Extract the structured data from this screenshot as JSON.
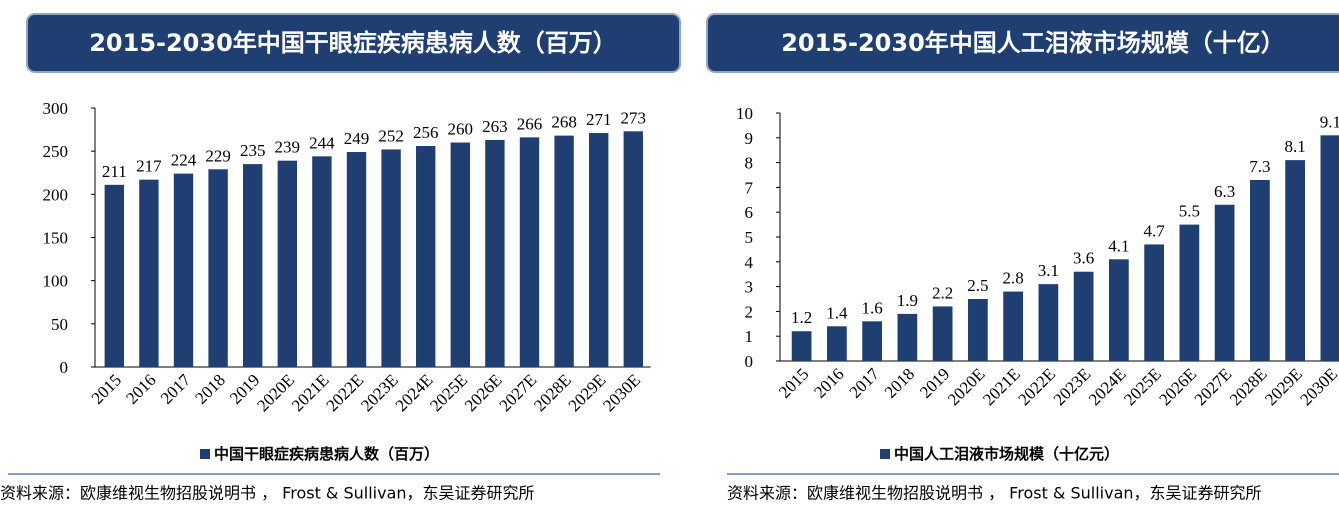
{
  "chart_data": [
    {
      "type": "bar",
      "title": "2015-2030年中国干眼症疾病患病人数（百万）",
      "categories": [
        "2015",
        "2016",
        "2017",
        "2018",
        "2019",
        "2020E",
        "2021E",
        "2022E",
        "2023E",
        "2024E",
        "2025E",
        "2026E",
        "2027E",
        "2028E",
        "2029E",
        "2030E"
      ],
      "series": [
        {
          "name": "中国干眼症疾病患病人数（百万）",
          "color": "#1f3f73",
          "values": [
            211,
            217,
            224,
            229,
            235,
            239,
            244,
            249,
            252,
            256,
            260,
            263,
            266,
            268,
            271,
            273
          ]
        }
      ],
      "ylim": [
        0,
        300
      ],
      "yticks": [
        0,
        50,
        100,
        150,
        200,
        250,
        300
      ],
      "grid": false,
      "source": "资料来源：欧康维视生物招股说明书 ， Frost & Sullivan，东吴证券研究所"
    },
    {
      "type": "bar",
      "title": "2015-2030年中国人工泪液市场规模（十亿）",
      "categories": [
        "2015",
        "2016",
        "2017",
        "2018",
        "2019",
        "2020E",
        "2021E",
        "2022E",
        "2023E",
        "2024E",
        "2025E",
        "2026E",
        "2027E",
        "2028E",
        "2029E",
        "2030E"
      ],
      "series": [
        {
          "name": "中国人工泪液市场规模（十亿元）",
          "color": "#1f3f73",
          "values": [
            1.2,
            1.4,
            1.6,
            1.9,
            2.2,
            2.5,
            2.8,
            3.1,
            3.6,
            4.1,
            4.7,
            5.5,
            6.3,
            7.3,
            8.1,
            9.1
          ]
        }
      ],
      "ylim": [
        0,
        10
      ],
      "yticks": [
        0,
        1,
        2,
        3,
        4,
        5,
        6,
        7,
        8,
        9,
        10
      ],
      "grid": false,
      "source": "资料来源：欧康维视生物招股说明书 ， Frost & Sullivan，东吴证券研究所"
    }
  ]
}
